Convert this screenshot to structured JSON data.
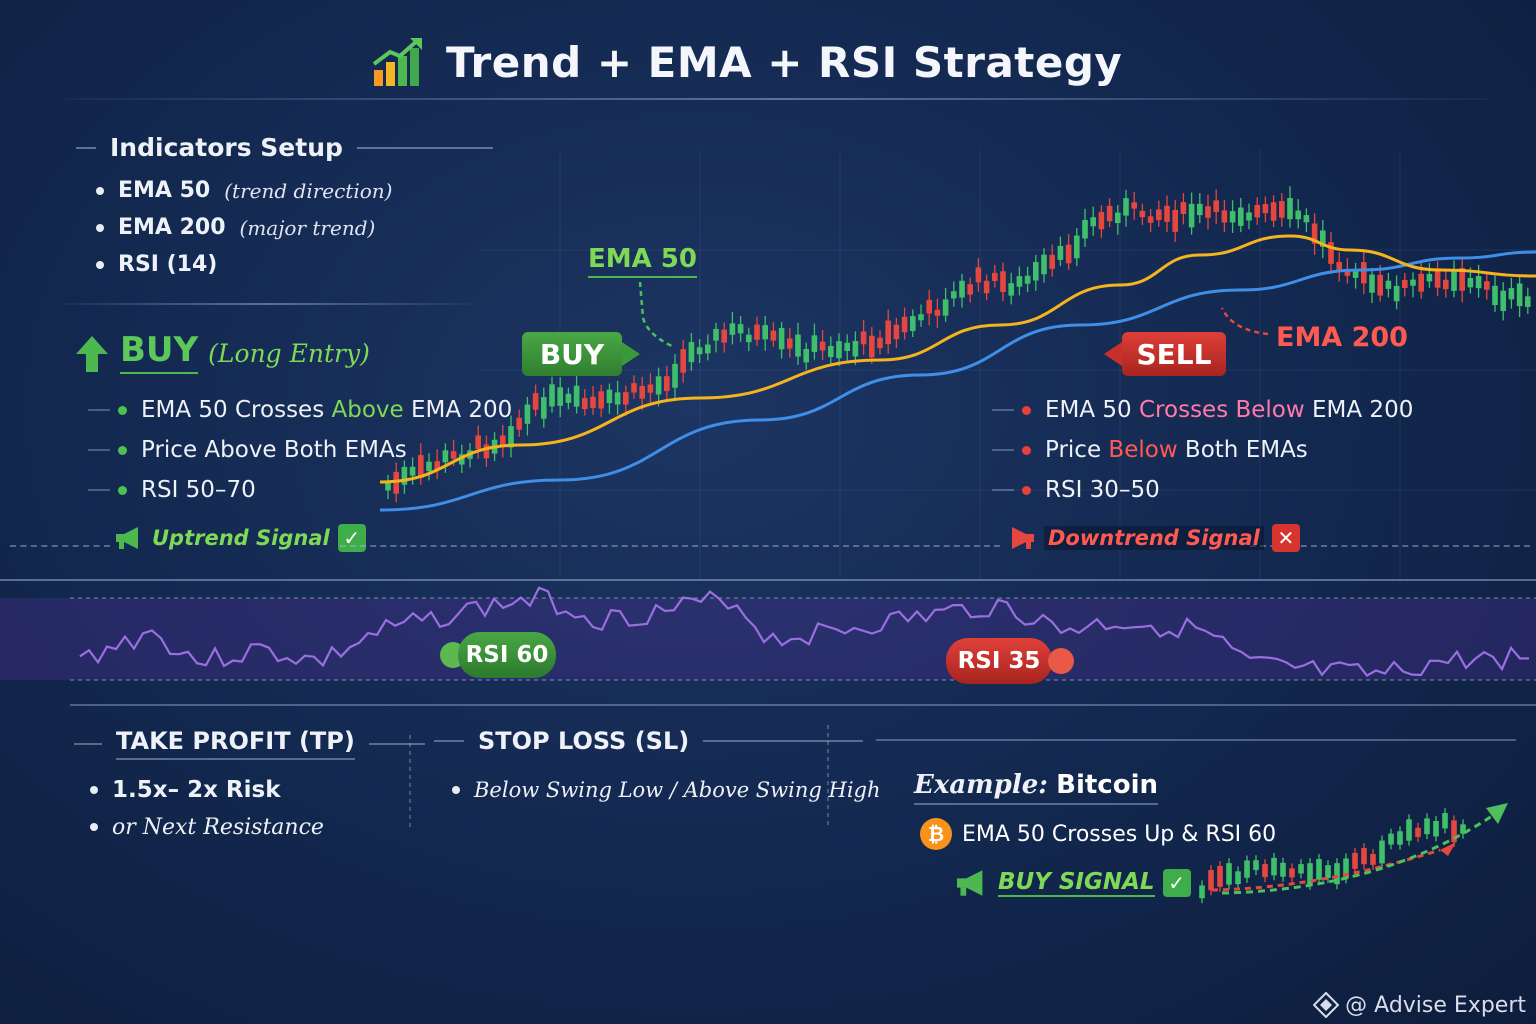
{
  "header": {
    "title": "Trend + EMA + RSI Strategy",
    "icon": "bar-chart-rising-icon"
  },
  "indicators": {
    "heading": "Indicators Setup",
    "items": [
      {
        "name": "EMA 50",
        "note": "(trend direction)"
      },
      {
        "name": "EMA 200",
        "note": "(major trend)"
      },
      {
        "name": "RSI (14)",
        "note": ""
      }
    ]
  },
  "buy": {
    "label": "BUY",
    "sub": "(Long Entry)",
    "conditions": [
      {
        "pre": "EMA 50 Crosses ",
        "hl": "Above",
        "post": " EMA 200"
      },
      {
        "pre": "Price Above Both EMAs",
        "hl": "",
        "post": ""
      },
      {
        "pre": "RSI 50–70",
        "hl": "",
        "post": ""
      }
    ],
    "signal_label": "Uptrend Signal",
    "icon": "megaphone-icon"
  },
  "sell": {
    "conditions": [
      {
        "pre": "EMA 50 ",
        "hl": "Crosses Below",
        "post": " EMA 200"
      },
      {
        "pre": "Price ",
        "hl": "Below",
        "post": " Both EMAs"
      },
      {
        "pre": "RSI 30–50",
        "hl": "",
        "post": ""
      }
    ],
    "signal_label": "Downtrend Signal"
  },
  "chart_labels": {
    "ema50": "EMA 50",
    "ema200": "EMA 200",
    "buy_tag": "BUY",
    "sell_tag": "SELL",
    "rsi_buy": "RSI 60",
    "rsi_sell": "RSI 35"
  },
  "take_profit": {
    "heading": "TAKE PROFIT (TP)",
    "items": [
      "1.5x– 2x Risk",
      "or Next Resistance"
    ]
  },
  "stop_loss": {
    "heading": "STOP LOSS (SL)",
    "items": [
      "Below Swing Low / Above Swing High"
    ]
  },
  "example": {
    "heading_prefix": "Example:",
    "heading_asset": "Bitcoin",
    "line": "EMA 50 Crosses Up & RSI 60",
    "coin_symbol": "₿",
    "signal": "BUY SIGNAL"
  },
  "watermark": "@ Advise Expert",
  "colors": {
    "ema50": "#f5b41e",
    "ema200": "#3f8fe8",
    "bull": "#3fbf6a",
    "bear": "#e5473e",
    "rsi": "#9a6fe0",
    "buy_green": "#3f9a3f",
    "sell_red": "#c9302c"
  }
}
